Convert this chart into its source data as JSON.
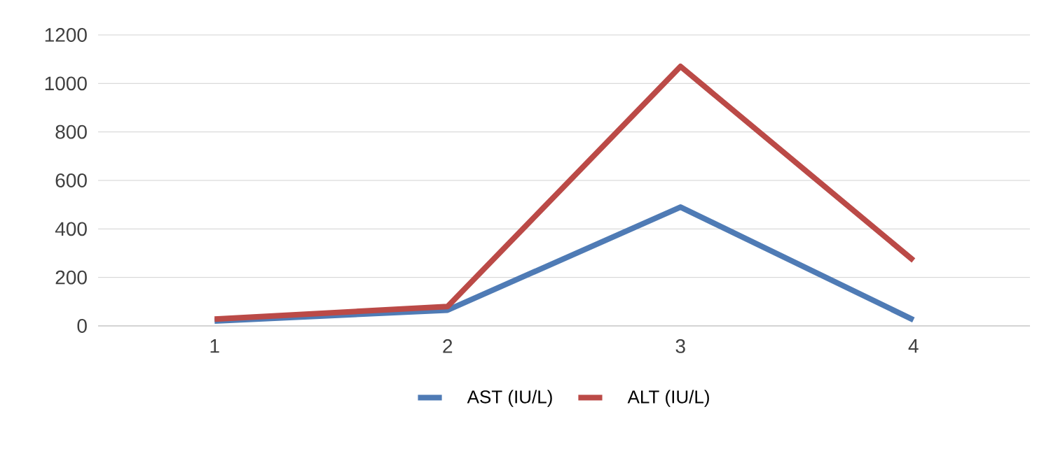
{
  "chart_data": {
    "type": "line",
    "categories": [
      "1",
      "2",
      "3",
      "4"
    ],
    "series": [
      {
        "name": "AST (IU/L)",
        "color": "#4f7bb5",
        "values": [
          20,
          65,
          490,
          25
        ]
      },
      {
        "name": "ALT (IU/L)",
        "color": "#bb4a47",
        "values": [
          28,
          80,
          1070,
          270
        ]
      }
    ],
    "ylim": [
      0,
      1200
    ],
    "yticks": [
      0,
      200,
      400,
      600,
      800,
      1000,
      1200
    ],
    "grid": "y",
    "legend": "bottom",
    "marker": "none",
    "line_style": "solid"
  }
}
